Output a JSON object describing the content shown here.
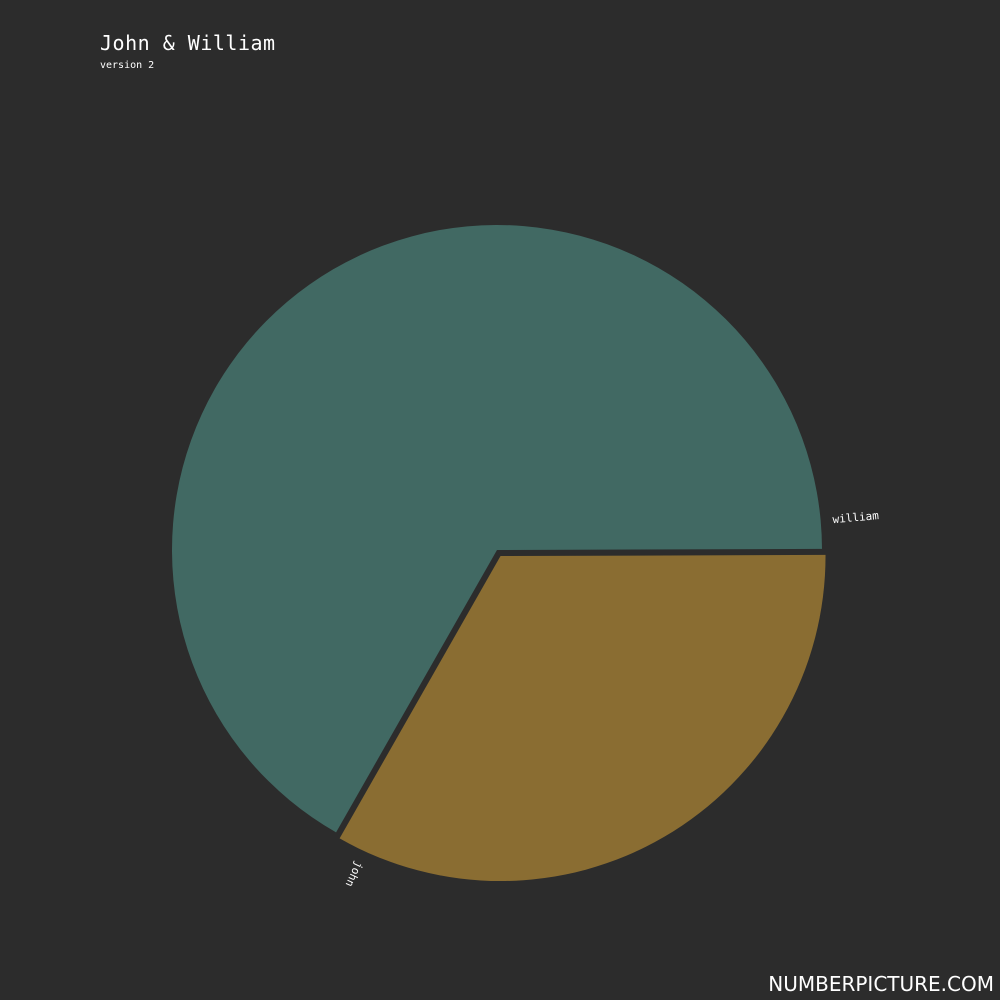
{
  "header": {
    "title": "John & William",
    "subtitle": "version 2"
  },
  "footer": {
    "brand": "NUMBERPICTURE.COM"
  },
  "chart_data": {
    "type": "pie",
    "title": "John & William",
    "subtitle": "version 2",
    "slices": [
      {
        "label": "william",
        "value": 66.7,
        "color": "#416963"
      },
      {
        "label": "john",
        "value": 33.3,
        "color": "#8a6d32"
      }
    ],
    "exploded": "john",
    "legend": "none"
  }
}
